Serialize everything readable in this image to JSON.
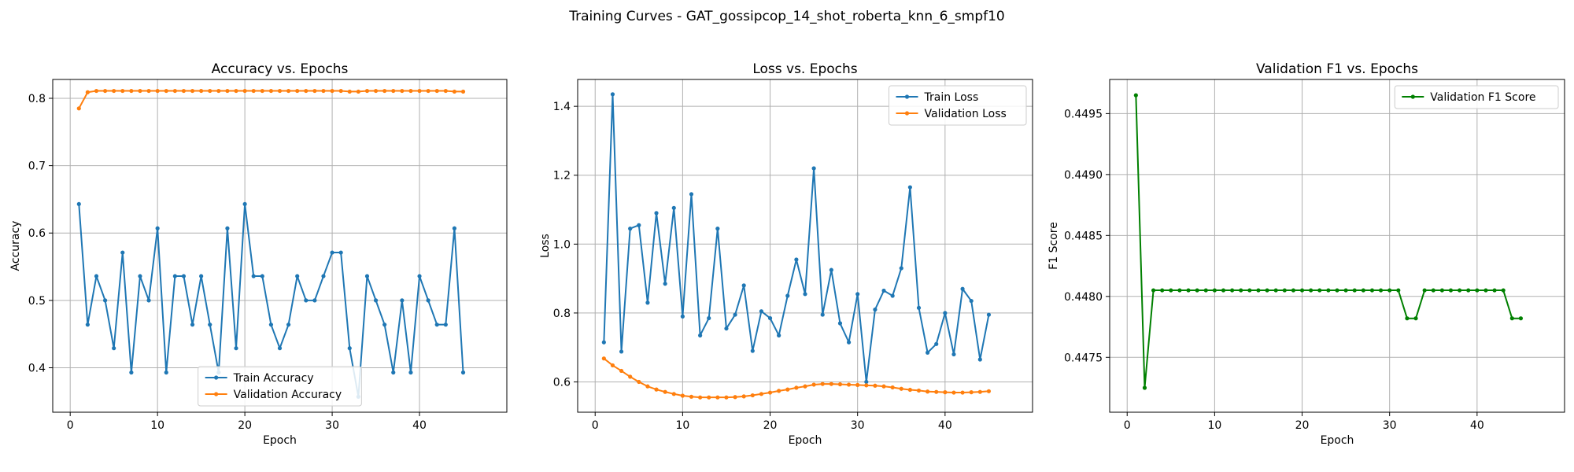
{
  "figure_title": "Training Curves - GAT_gossipcop_14_shot_roberta_knn_6_smpf10",
  "chart_data": [
    {
      "type": "line",
      "title": "Accuracy vs. Epochs",
      "xlabel": "Epoch",
      "ylabel": "Accuracy",
      "xlim": [
        -2,
        50
      ],
      "ylim": [
        0.334,
        0.828
      ],
      "xticks": [
        0,
        10,
        20,
        30,
        40
      ],
      "yticks": [
        0.4,
        0.5,
        0.6,
        0.7,
        0.8
      ],
      "ytick_labels": [
        "0.4",
        "0.5",
        "0.6",
        "0.7",
        "0.8"
      ],
      "grid": true,
      "legend_position": "lower-center",
      "series": [
        {
          "name": "Train Accuracy",
          "color": "#1f77b4",
          "x": [
            1,
            2,
            3,
            4,
            5,
            6,
            7,
            8,
            9,
            10,
            11,
            12,
            13,
            14,
            15,
            16,
            17,
            18,
            19,
            20,
            21,
            22,
            23,
            24,
            25,
            26,
            27,
            28,
            29,
            30,
            31,
            32,
            33,
            34,
            35,
            36,
            37,
            38,
            39,
            40,
            41,
            42,
            43,
            44,
            45
          ],
          "values": [
            0.643,
            0.464,
            0.536,
            0.5,
            0.429,
            0.571,
            0.393,
            0.536,
            0.5,
            0.607,
            0.393,
            0.536,
            0.536,
            0.464,
            0.536,
            0.464,
            0.393,
            0.607,
            0.429,
            0.643,
            0.536,
            0.536,
            0.464,
            0.429,
            0.464,
            0.536,
            0.5,
            0.5,
            0.536,
            0.571,
            0.571,
            0.429,
            0.357,
            0.536,
            0.5,
            0.464,
            0.393,
            0.5,
            0.393,
            0.536,
            0.5,
            0.464,
            0.464,
            0.607,
            0.393
          ]
        },
        {
          "name": "Validation Accuracy",
          "color": "#ff7f0e",
          "x": [
            1,
            2,
            3,
            4,
            5,
            6,
            7,
            8,
            9,
            10,
            11,
            12,
            13,
            14,
            15,
            16,
            17,
            18,
            19,
            20,
            21,
            22,
            23,
            24,
            25,
            26,
            27,
            28,
            29,
            30,
            31,
            32,
            33,
            34,
            35,
            36,
            37,
            38,
            39,
            40,
            41,
            42,
            43,
            44,
            45
          ],
          "values": [
            0.785,
            0.809,
            0.811,
            0.811,
            0.811,
            0.811,
            0.811,
            0.811,
            0.811,
            0.811,
            0.811,
            0.811,
            0.811,
            0.811,
            0.811,
            0.811,
            0.811,
            0.811,
            0.811,
            0.811,
            0.811,
            0.811,
            0.811,
            0.811,
            0.811,
            0.811,
            0.811,
            0.811,
            0.811,
            0.811,
            0.811,
            0.81,
            0.81,
            0.811,
            0.811,
            0.811,
            0.811,
            0.811,
            0.811,
            0.811,
            0.811,
            0.811,
            0.811,
            0.81,
            0.81
          ]
        }
      ]
    },
    {
      "type": "line",
      "title": "Loss vs. Epochs",
      "xlabel": "Epoch",
      "ylabel": "Loss",
      "xlim": [
        -2,
        50
      ],
      "ylim": [
        0.512,
        1.478
      ],
      "xticks": [
        0,
        10,
        20,
        30,
        40
      ],
      "yticks": [
        0.6,
        0.8,
        1.0,
        1.2,
        1.4
      ],
      "ytick_labels": [
        "0.6",
        "0.8",
        "1.0",
        "1.2",
        "1.4"
      ],
      "grid": true,
      "legend_position": "upper-right",
      "series": [
        {
          "name": "Train Loss",
          "color": "#1f77b4",
          "x": [
            1,
            2,
            3,
            4,
            5,
            6,
            7,
            8,
            9,
            10,
            11,
            12,
            13,
            14,
            15,
            16,
            17,
            18,
            19,
            20,
            21,
            22,
            23,
            24,
            25,
            26,
            27,
            28,
            29,
            30,
            31,
            32,
            33,
            34,
            35,
            36,
            37,
            38,
            39,
            40,
            41,
            42,
            43,
            44,
            45
          ],
          "values": [
            0.715,
            1.435,
            0.688,
            1.045,
            1.055,
            0.83,
            1.09,
            0.885,
            1.105,
            0.79,
            1.145,
            0.735,
            0.785,
            1.045,
            0.755,
            0.795,
            0.88,
            0.69,
            0.805,
            0.785,
            0.735,
            0.85,
            0.955,
            0.855,
            1.22,
            0.795,
            0.925,
            0.77,
            0.715,
            0.855,
            0.6,
            0.81,
            0.865,
            0.85,
            0.93,
            1.165,
            0.815,
            0.685,
            0.71,
            0.8,
            0.68,
            0.87,
            0.835,
            0.665,
            0.795
          ]
        },
        {
          "name": "Validation Loss",
          "color": "#ff7f0e",
          "x": [
            1,
            2,
            3,
            4,
            5,
            6,
            7,
            8,
            9,
            10,
            11,
            12,
            13,
            14,
            15,
            16,
            17,
            18,
            19,
            20,
            21,
            22,
            23,
            24,
            25,
            26,
            27,
            28,
            29,
            30,
            31,
            32,
            33,
            34,
            35,
            36,
            37,
            38,
            39,
            40,
            41,
            42,
            43,
            44,
            45
          ],
          "values": [
            0.668,
            0.648,
            0.632,
            0.615,
            0.6,
            0.587,
            0.578,
            0.571,
            0.565,
            0.56,
            0.557,
            0.555,
            0.555,
            0.555,
            0.555,
            0.556,
            0.558,
            0.561,
            0.565,
            0.569,
            0.574,
            0.578,
            0.583,
            0.587,
            0.592,
            0.594,
            0.594,
            0.593,
            0.592,
            0.591,
            0.59,
            0.589,
            0.587,
            0.584,
            0.58,
            0.577,
            0.575,
            0.572,
            0.571,
            0.57,
            0.569,
            0.569,
            0.57,
            0.571,
            0.573
          ]
        }
      ]
    },
    {
      "type": "line",
      "title": "Validation F1 vs. Epochs",
      "xlabel": "Epoch",
      "ylabel": "F1 Score",
      "xlim": [
        -2,
        50
      ],
      "ylim": [
        0.44705,
        0.44978
      ],
      "xticks": [
        0,
        10,
        20,
        30,
        40
      ],
      "yticks": [
        0.4475,
        0.448,
        0.4485,
        0.449,
        0.4495
      ],
      "ytick_labels": [
        "0.4475",
        "0.4480",
        "0.4485",
        "0.4490",
        "0.4495"
      ],
      "grid": true,
      "legend_position": "upper-right",
      "series": [
        {
          "name": "Validation F1 Score",
          "color": "#008000",
          "x": [
            1,
            2,
            3,
            4,
            5,
            6,
            7,
            8,
            9,
            10,
            11,
            12,
            13,
            14,
            15,
            16,
            17,
            18,
            19,
            20,
            21,
            22,
            23,
            24,
            25,
            26,
            27,
            28,
            29,
            30,
            31,
            32,
            33,
            34,
            35,
            36,
            37,
            38,
            39,
            40,
            41,
            42,
            43,
            44,
            45
          ],
          "values": [
            0.44965,
            0.44725,
            0.44805,
            0.44805,
            0.44805,
            0.44805,
            0.44805,
            0.44805,
            0.44805,
            0.44805,
            0.44805,
            0.44805,
            0.44805,
            0.44805,
            0.44805,
            0.44805,
            0.44805,
            0.44805,
            0.44805,
            0.44805,
            0.44805,
            0.44805,
            0.44805,
            0.44805,
            0.44805,
            0.44805,
            0.44805,
            0.44805,
            0.44805,
            0.44805,
            0.44805,
            0.44782,
            0.44782,
            0.44805,
            0.44805,
            0.44805,
            0.44805,
            0.44805,
            0.44805,
            0.44805,
            0.44805,
            0.44805,
            0.44805,
            0.44782,
            0.44782
          ]
        }
      ]
    }
  ]
}
